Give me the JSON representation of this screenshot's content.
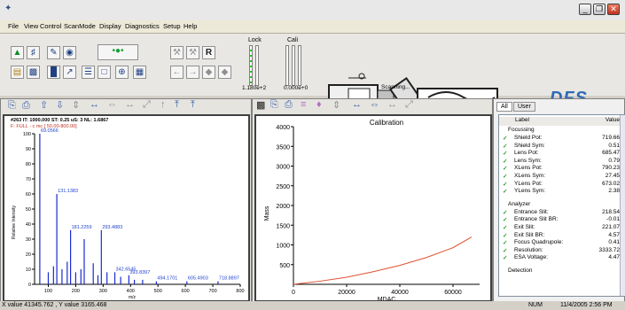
{
  "menu": [
    "File",
    "View",
    "Control",
    "ScanMode",
    "Display",
    "Diagnostics",
    "Setup",
    "Help"
  ],
  "toolbar": {
    "lock_label": "Lock",
    "cali_label": "Cali",
    "lock_value": "1.180e+2",
    "cali_value": "0.000e+0",
    "scan_status": "Scanning...",
    "logo": "DFS"
  },
  "spectrum": {
    "header1": "#263  IT: 1000.000  ST: 0.25  uS: 3  NL: 1.6867",
    "header2": "F: FULL - c mc [ 50.00-800.00]",
    "ylabel": "Relative Intensity",
    "xlabel": "m/z",
    "yticks": [
      "100",
      "90",
      "80",
      "70",
      "60",
      "50",
      "40",
      "30",
      "20",
      "10",
      "0"
    ],
    "xticks": [
      "100",
      "200",
      "300",
      "400",
      "500",
      "600",
      "700",
      "800"
    ],
    "peak_labels": [
      "69.0566",
      "131.1383",
      "181.2259",
      "293.4883",
      "342.6545",
      "393.8397",
      "494.1701",
      "605.4903",
      "718.8897"
    ]
  },
  "chart_data": [
    {
      "type": "bar",
      "title": "",
      "xlabel": "m/z",
      "ylabel": "Relative Intensity",
      "xlim": [
        50,
        800
      ],
      "ylim": [
        0,
        100
      ],
      "x": [
        69.0566,
        100,
        119,
        131.1383,
        150,
        169,
        181.2259,
        200,
        219,
        231,
        264,
        281,
        293.4883,
        314,
        342.6545,
        364,
        393.8397,
        414,
        444,
        494.1701,
        605.4903,
        718.8897
      ],
      "y": [
        100,
        8,
        12,
        60,
        10,
        15,
        36,
        8,
        10,
        30,
        14,
        6,
        36,
        8,
        8,
        5,
        6,
        3,
        3,
        2,
        2,
        2
      ]
    },
    {
      "type": "line",
      "title": "Calibration",
      "xlabel": "MDAC",
      "ylabel": "Mass",
      "xlim": [
        0,
        70000
      ],
      "ylim": [
        0,
        4000
      ],
      "x": [
        0,
        10000,
        20000,
        30000,
        40000,
        50000,
        60000,
        67000
      ],
      "y": [
        0,
        80,
        180,
        320,
        480,
        680,
        930,
        1200
      ]
    }
  ],
  "calibration": {
    "title": "Calibration",
    "xlabel": "MDAC",
    "ylabel": "Mass",
    "yticks": [
      "4000",
      "3500",
      "3000",
      "2500",
      "2000",
      "1500",
      "1000",
      "500"
    ],
    "xticks": [
      "0",
      "20000",
      "40000",
      "60000"
    ],
    "line_color": "#e05030"
  },
  "tabs": [
    "All",
    "User"
  ],
  "table": {
    "col_label": "Label",
    "col_value": "Value",
    "sections": [
      {
        "title": "Focussing",
        "rows": [
          [
            "Shield Pot:",
            "719.66"
          ],
          [
            "Shield Sym:",
            "0.51"
          ],
          [
            "Lens Pot:",
            "685.47"
          ],
          [
            "Lens Sym:",
            "0.79"
          ],
          [
            "XLens Pot:",
            "790.23"
          ],
          [
            "XLens Sym:",
            "27.45"
          ],
          [
            "YLens Pot:",
            "673.02"
          ],
          [
            "YLens Sym:",
            "2.38"
          ]
        ]
      },
      {
        "title": "Analyzer",
        "rows": [
          [
            "Entrance Slit:",
            "218.54"
          ],
          [
            "Entrance Slit BR:",
            "-0.01"
          ],
          [
            "Exit Slit:",
            "221.07"
          ],
          [
            "Exit Slit BR:",
            "4.57"
          ],
          [
            "Focus Quadrupole:",
            "0.41"
          ],
          [
            "Resolution:",
            "3333.72"
          ],
          [
            "ESA Voltage:",
            "4.47"
          ]
        ]
      },
      {
        "title": "Detection",
        "rows": []
      }
    ]
  },
  "status": {
    "left": "X value 41345.762 , Y value 3165.468",
    "num": "NUM",
    "datetime": "11/4/2005   2:56 PM"
  },
  "colors": {
    "spectrum_bars": "#1a2ad0",
    "peak_labels": "#2244cc",
    "check": "#2a9a2a",
    "logo": "#2f6ab8"
  }
}
